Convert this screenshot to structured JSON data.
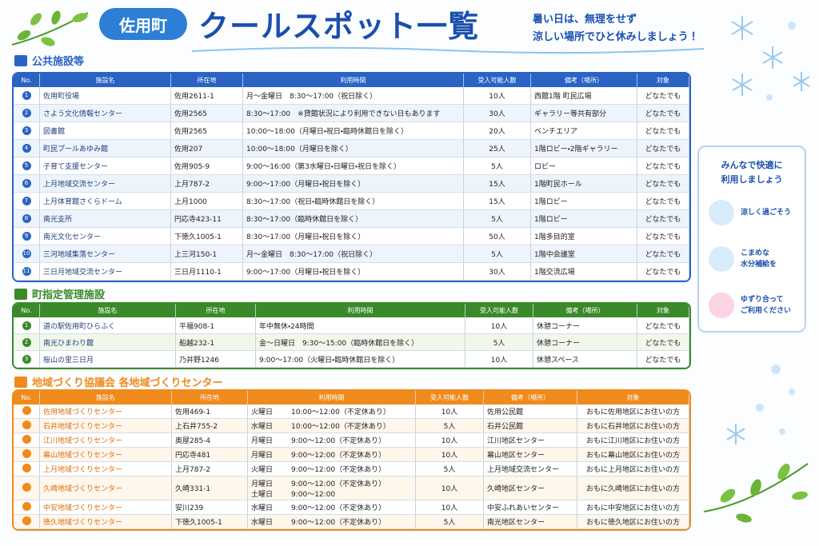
{
  "header": {
    "badge": "佐用町",
    "title": "クールスポット一覧",
    "tagline": [
      "暑い日は、無理をせず",
      "涼しい場所でひと休みしましょう！"
    ]
  },
  "sections": [
    {
      "title": "公共施設等",
      "headers": [
        "No.",
        "施設名",
        "所在地",
        "利用時間",
        "受入可能人数",
        "備考（場所）",
        "対象"
      ],
      "rows": [
        {
          "no": "1",
          "name": "佐用町役場",
          "address": "佐用2611-1",
          "hours": "月～金曜日　8:30～17:00（祝日除く）",
          "capacity": "10人",
          "place": "西館1階 町民広場",
          "target": "どなたでも"
        },
        {
          "no": "2",
          "name": "さよう文化情報センター",
          "address": "佐用2565",
          "hours": "8:30～17:00　※貸館状況により利用できない日もあります",
          "capacity": "30人",
          "place": "ギャラリー等共有部分",
          "target": "どなたでも"
        },
        {
          "no": "3",
          "name": "図書館",
          "address": "佐用2565",
          "hours": "10:00～18:00（月曜日・祝日・臨時休館日を除く）",
          "capacity": "20人",
          "place": "ベンチエリア",
          "target": "どなたでも"
        },
        {
          "no": "4",
          "name": "町民プールあゆみ館",
          "address": "佐用207",
          "hours": "10:00～18:00（月曜日を除く）",
          "capacity": "25人",
          "place": "1階ロビー・2階ギャラリー",
          "target": "どなたでも"
        },
        {
          "no": "5",
          "name": "子育て支援センター",
          "address": "佐用905-9",
          "hours": "9:00～16:00（第3水曜日・日曜日・祝日を除く）",
          "capacity": "5人",
          "place": "ロビー",
          "target": "どなたでも"
        },
        {
          "no": "6",
          "name": "上月地域交流センター",
          "address": "上月787-2",
          "hours": "9:00～17:00（月曜日・祝日を除く）",
          "capacity": "15人",
          "place": "1階町民ホール",
          "target": "どなたでも"
        },
        {
          "no": "7",
          "name": "上月体育館さくらドーム",
          "address": "上月1000",
          "hours": "8:30～17:00（祝日・臨時休館日を除く）",
          "capacity": "15人",
          "place": "1階ロビー",
          "target": "どなたでも"
        },
        {
          "no": "8",
          "name": "南光支所",
          "address": "円応寺423-11",
          "hours": "8:30～17:00（臨時休館日を除く）",
          "capacity": "5人",
          "place": "1階ロビー",
          "target": "どなたでも"
        },
        {
          "no": "9",
          "name": "南光文化センター",
          "address": "下徳久1005-1",
          "hours": "8:30～17:00（月曜日・祝日を除く）",
          "capacity": "50人",
          "place": "1階多目的室",
          "target": "どなたでも"
        },
        {
          "no": "10",
          "name": "三河地域集落センター",
          "address": "上三河150-1",
          "hours": "月～金曜日　8:30～17:00（祝日除く）",
          "capacity": "5人",
          "place": "1階中会議室",
          "target": "どなたでも"
        },
        {
          "no": "11",
          "name": "三日月地域交流センター",
          "address": "三日月1110-1",
          "hours": "9:00～17:00（月曜日・祝日を除く）",
          "capacity": "30人",
          "place": "1階交流広場",
          "target": "どなたでも"
        }
      ]
    },
    {
      "title": "町指定管理施設",
      "headers": [
        "No.",
        "施設名",
        "所在地",
        "利用時間",
        "受入可能人数",
        "備考（場所）",
        "対象"
      ],
      "rows": [
        {
          "no": "1",
          "name": "道の駅佐用町ひらふく",
          "address": "平福908-1",
          "hours": "年中無休・24時間",
          "capacity": "10人",
          "place": "休憩コーナー",
          "target": "どなたでも"
        },
        {
          "no": "2",
          "name": "南光ひまわり館",
          "address": "船越232-1",
          "hours": "金～日曜日　9:30～15:00（臨時休館日を除く）",
          "capacity": "5人",
          "place": "休憩コーナー",
          "target": "どなたでも"
        },
        {
          "no": "3",
          "name": "桜山の里三日月",
          "address": "乃井野1246",
          "hours": "9:00～17:00（火曜日・臨時休館日を除く）",
          "capacity": "10人",
          "place": "休憩スペース",
          "target": "どなたでも"
        }
      ]
    },
    {
      "title": "地域づくり協議会 各地域づくりセンター",
      "headers": [
        "No.",
        "施設名",
        "所在地",
        "利用時間",
        "受入可能人数",
        "備考（場所）",
        "対象"
      ],
      "rows": [
        {
          "name": "佐用地域づくりセンター",
          "address": "佐用469-1",
          "day": [
            "火曜日"
          ],
          "time": [
            "10:00～12:00（不定休あり）"
          ],
          "capacity": "10人",
          "place": "佐用公民館",
          "target": "おもに佐用地区にお住いの方"
        },
        {
          "name": "石井地域づくりセンター",
          "address": "上石井755-2",
          "day": [
            "水曜日"
          ],
          "time": [
            "10:00～12:00（不定休あり）"
          ],
          "capacity": "5人",
          "place": "石井公民館",
          "target": "おもに石井地区にお住いの方"
        },
        {
          "name": "江川地域づくりセンター",
          "address": "奥屋285-4",
          "day": [
            "月曜日"
          ],
          "time": [
            "9:00～12:00（不定休あり）"
          ],
          "capacity": "10人",
          "place": "江川地区センター",
          "target": "おもに江川地区にお住いの方"
        },
        {
          "name": "幕山地域づくりセンター",
          "address": "円応寺481",
          "day": [
            "月曜日"
          ],
          "time": [
            "9:00～12:00（不定休あり）"
          ],
          "capacity": "10人",
          "place": "幕山地区センター",
          "target": "おもに幕山地区にお住いの方"
        },
        {
          "name": "上月地域づくりセンター",
          "address": "上月787-2",
          "day": [
            "火曜日"
          ],
          "time": [
            "9:00～12:00（不定休あり）"
          ],
          "capacity": "5人",
          "place": "上月地域交流センター",
          "target": "おもに上月地区にお住いの方"
        },
        {
          "name": "久崎地域づくりセンター",
          "address": "久崎331-1",
          "day": [
            "月曜日",
            "土曜日"
          ],
          "time": [
            "9:00～12:00（不定休あり）",
            "9:00～12:00"
          ],
          "capacity": "10人",
          "place": "久崎地区センター",
          "target": "おもに久崎地区にお住いの方"
        },
        {
          "name": "中安地域づくりセンター",
          "address": "安川239",
          "day": [
            "水曜日"
          ],
          "time": [
            "9:00～12:00（不定休あり）"
          ],
          "capacity": "10人",
          "place": "中安ふれあいセンター",
          "target": "おもに中安地区にお住いの方"
        },
        {
          "name": "徳久地域づくりセンター",
          "address": "下徳久1005-1",
          "day": [
            "水曜日"
          ],
          "time": [
            "9:00～12:00（不定休あり）"
          ],
          "capacity": "5人",
          "place": "南光地区センター",
          "target": "おもに徳久地区にお住いの方"
        }
      ]
    }
  ],
  "sidebar": {
    "title": [
      "みんなで快適に",
      "利用しましょう"
    ],
    "items": [
      [
        "涼しく過ごそう"
      ],
      [
        "こまめな",
        "水分補給を"
      ],
      [
        "ゆずり合って",
        "ご利用ください"
      ]
    ]
  }
}
